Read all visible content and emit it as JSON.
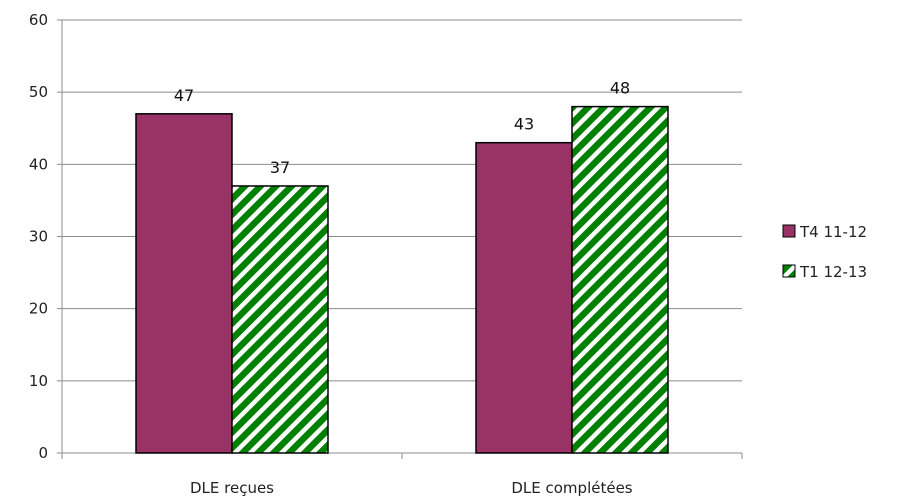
{
  "chart_data": {
    "type": "bar",
    "categories": [
      "DLE reçues",
      "DLE complétées"
    ],
    "series": [
      {
        "name": "T4 11-12",
        "values": [
          47,
          43
        ],
        "color": "#993366",
        "pattern": "solid"
      },
      {
        "name": "T1 12-13",
        "values": [
          37,
          48
        ],
        "color": "#008000",
        "pattern": "diagonal-stripes"
      }
    ],
    "ylim": [
      0,
      60
    ],
    "yticks": [
      0,
      10,
      20,
      30,
      40,
      50,
      60
    ],
    "grid": true,
    "legend_position": "right",
    "data_labels": true
  }
}
